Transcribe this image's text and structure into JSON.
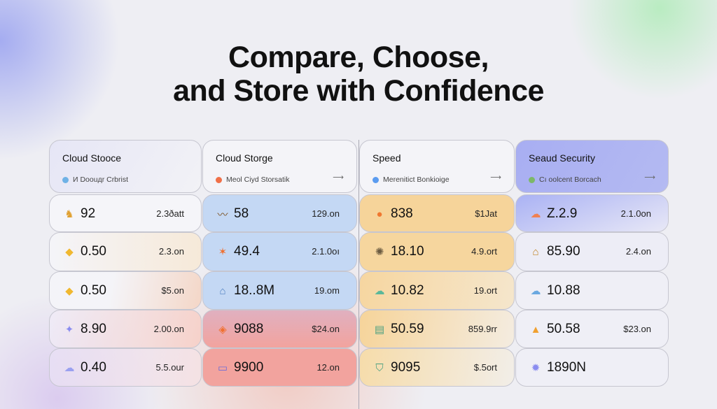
{
  "title": {
    "line1": "Compare, Choose,",
    "line2": "and Store with Confidence"
  },
  "columns": [
    {
      "header": "Cloud Stooce",
      "subtitle": "И Doouдr Crbrist",
      "dot_color": "#6fb2e6",
      "arrow": false,
      "rows": [
        {
          "icon": "robot-icon",
          "value": "92",
          "price": "2.3ðatt"
        },
        {
          "icon": "diamond-icon",
          "value": "0.50",
          "price": "2.3.on"
        },
        {
          "icon": "diamond-icon",
          "value": "0.50",
          "price": "$5.on"
        },
        {
          "icon": "star-diamond-icon",
          "value": "8.90",
          "price": "2.00.on"
        },
        {
          "icon": "cloud-icon",
          "value": "0.40",
          "price": "5.5.our"
        }
      ]
    },
    {
      "header": "Cloud Storge",
      "subtitle": "Meol Ciyd Storsatik",
      "dot_color": "#f07048",
      "arrow": true,
      "rows": [
        {
          "icon": "waveform-icon",
          "value": "58",
          "price": "129.on"
        },
        {
          "icon": "star-box-icon",
          "value": "49.4",
          "price": "2.1.0oı"
        },
        {
          "icon": "lock-icon",
          "value": "18..8M",
          "price": "19.om"
        },
        {
          "icon": "target-box-icon",
          "value": "9088",
          "price": "$24.on"
        },
        {
          "icon": "drive-icon",
          "value": "9900",
          "price": "12.on"
        }
      ]
    },
    {
      "header": "Speed",
      "subtitle": "Merenitict Bonkioige",
      "dot_color": "#5b9cf0",
      "arrow": true,
      "rows": [
        {
          "icon": "gauge-icon",
          "value": "838",
          "price": "$1Jat"
        },
        {
          "icon": "gear-icon",
          "value": "18.10",
          "price": "4.9.ort"
        },
        {
          "icon": "cloud-icon",
          "value": "10.82",
          "price": "19.ort"
        },
        {
          "icon": "server-icon",
          "value": "50.59",
          "price": "859.9rr"
        },
        {
          "icon": "shield-icon",
          "value": "9095",
          "price": "$.5ort"
        }
      ]
    },
    {
      "header": "Seaud Security",
      "subtitle": "Cı oolcent Borcach",
      "dot_color": "#7cb868",
      "arrow": true,
      "rows": [
        {
          "icon": "cloud-icon",
          "value": "Z.2.9",
          "price": "2.1.0on"
        },
        {
          "icon": "vault-icon",
          "value": "85.90",
          "price": "2.4.on"
        },
        {
          "icon": "cloud-icon",
          "value": "10.88",
          "price": ""
        },
        {
          "icon": "cone-icon",
          "value": "50.58",
          "price": "$23.on"
        },
        {
          "icon": "bug-icon",
          "value": "1890N",
          "price": ""
        }
      ]
    }
  ]
}
